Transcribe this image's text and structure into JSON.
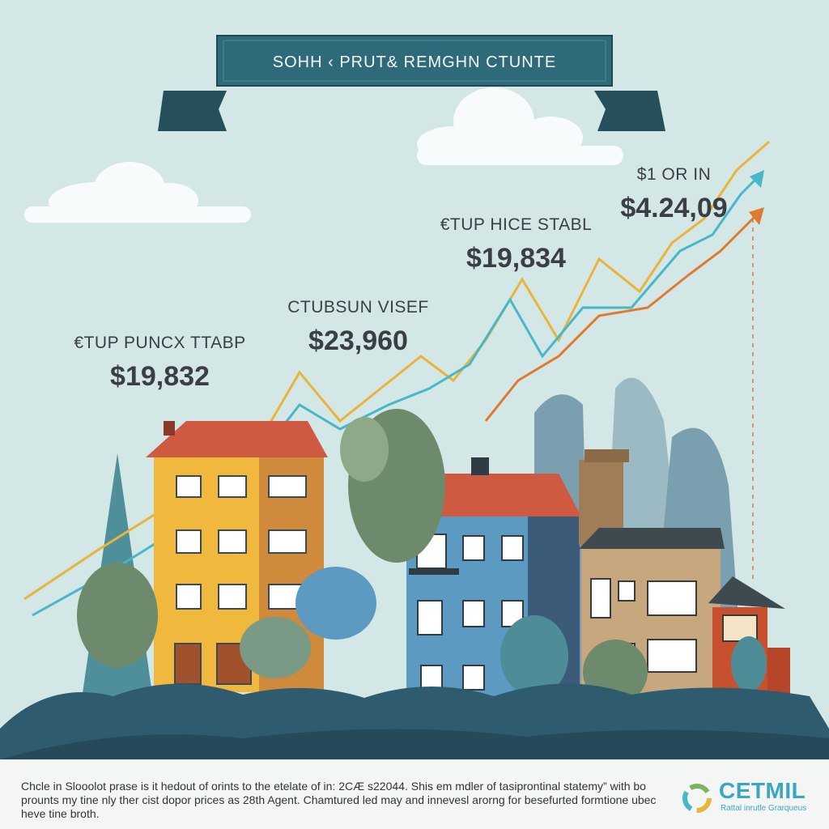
{
  "banner": {
    "title": "SOHH ‹ PRUT& REMGHN CTUNTE"
  },
  "annotations": [
    {
      "caption": "€TUP PUNCX TTABP",
      "value": "$19,832"
    },
    {
      "caption": "CTUBSUN VISEF",
      "value": "$23,960"
    },
    {
      "caption": "€TUP HICE STABL",
      "value": "$19,834"
    },
    {
      "caption": "$1 OR IN",
      "value": "$4.24,09"
    }
  ],
  "footer": {
    "caption": "Chcle in Slooolot prase is it hedout of orints to the etelate of in: 2CÆ s22044. Shis em mdler of tasiprontinal statemy” with bo prounts my tine nly ther cist dopor prices as 28th Agent. Chamtured led may and innevesl arorng for besefurted formtione ubec heve tine broth.",
    "logo_text": "CETMIL",
    "logo_subtext": "Rattal inrutle Grarqueus"
  },
  "colors": {
    "sky": "#d3e7e6",
    "banner": "#2e6a79",
    "line_yellow": "#e8b53a",
    "line_teal": "#48b7c7",
    "line_orange": "#e07a2e",
    "ground": "#2e5b6e"
  }
}
